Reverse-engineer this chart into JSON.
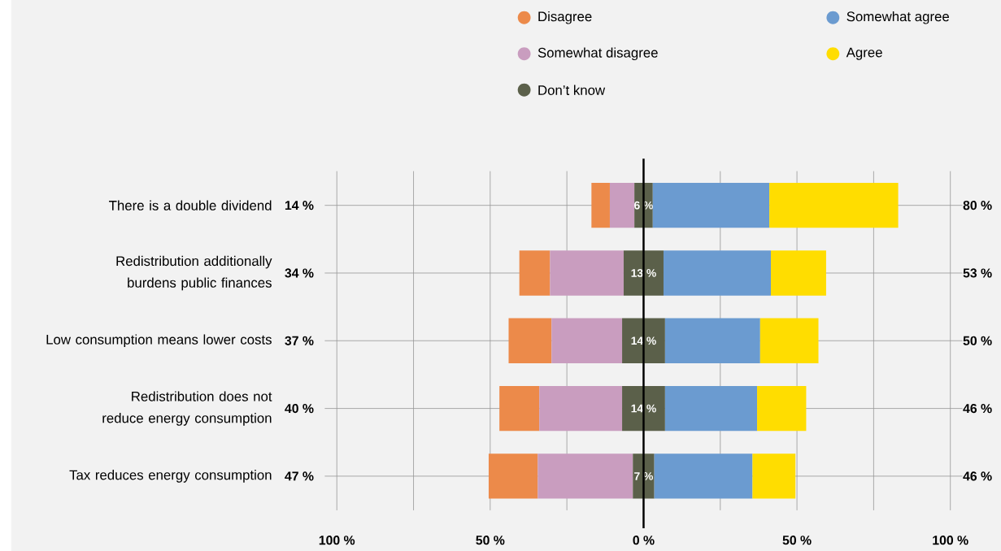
{
  "chart_data": {
    "type": "bar",
    "orientation": "horizontal",
    "categories": [
      "There is a double dividend",
      "Redistribution additionally burdens public finances",
      "Low consumption means lower costs",
      "Redistribution does not reduce energy consumption",
      "Tax reduces energy consumption"
    ],
    "series": [
      {
        "name": "Disagree",
        "color": "#ec8a4a",
        "values": [
          6,
          10,
          14,
          13,
          16
        ],
        "base": [
          -17,
          -40.5,
          -44,
          -47,
          -50.5
        ]
      },
      {
        "name": "Somewhat disagree",
        "color": "#c99dbf",
        "values": [
          8,
          24,
          23,
          27,
          31
        ],
        "base": [
          -11,
          -30.5,
          -30,
          -34,
          -34.5
        ]
      },
      {
        "name": "Don’t know",
        "color": "#5b604a",
        "values": [
          6,
          13,
          14,
          14,
          7
        ],
        "base": [
          -3,
          -6.5,
          -7,
          -7,
          -3.5
        ],
        "value_labels": [
          "6 %",
          "13 %",
          "14 %",
          "14 %",
          "7 %"
        ]
      },
      {
        "name": "Somewhat agree",
        "color": "#6b9bd0",
        "values": [
          38,
          35,
          31,
          30,
          32
        ],
        "base": [
          3,
          6.5,
          7,
          7,
          3.5
        ]
      },
      {
        "name": "Agree",
        "color": "#ffdd00",
        "values": [
          42,
          18,
          19,
          16,
          14
        ],
        "base": [
          41,
          41.5,
          38,
          37,
          35.5
        ]
      }
    ],
    "xlim": [
      -100,
      100
    ],
    "xticks": [
      {
        "value": -100,
        "label": "100 %"
      },
      {
        "value": -75,
        "label": null
      },
      {
        "value": -50,
        "label": "50 %"
      },
      {
        "value": -25,
        "label": null
      },
      {
        "value": 0,
        "label": "0 %"
      },
      {
        "value": 25,
        "label": null
      },
      {
        "value": 50,
        "label": "50 %"
      },
      {
        "value": 75,
        "label": null
      },
      {
        "value": 100,
        "label": "100 %"
      }
    ],
    "ref_lines": [
      {
        "axis": "x",
        "value": 0,
        "color": "#000000"
      }
    ],
    "annotations": [
      "14 %",
      "34 %",
      "37 %",
      "40 %",
      "47 %",
      "80 %",
      "53 %",
      "50 %",
      "46 %",
      "46 %"
    ],
    "grid": true,
    "legend": "top right"
  }
}
